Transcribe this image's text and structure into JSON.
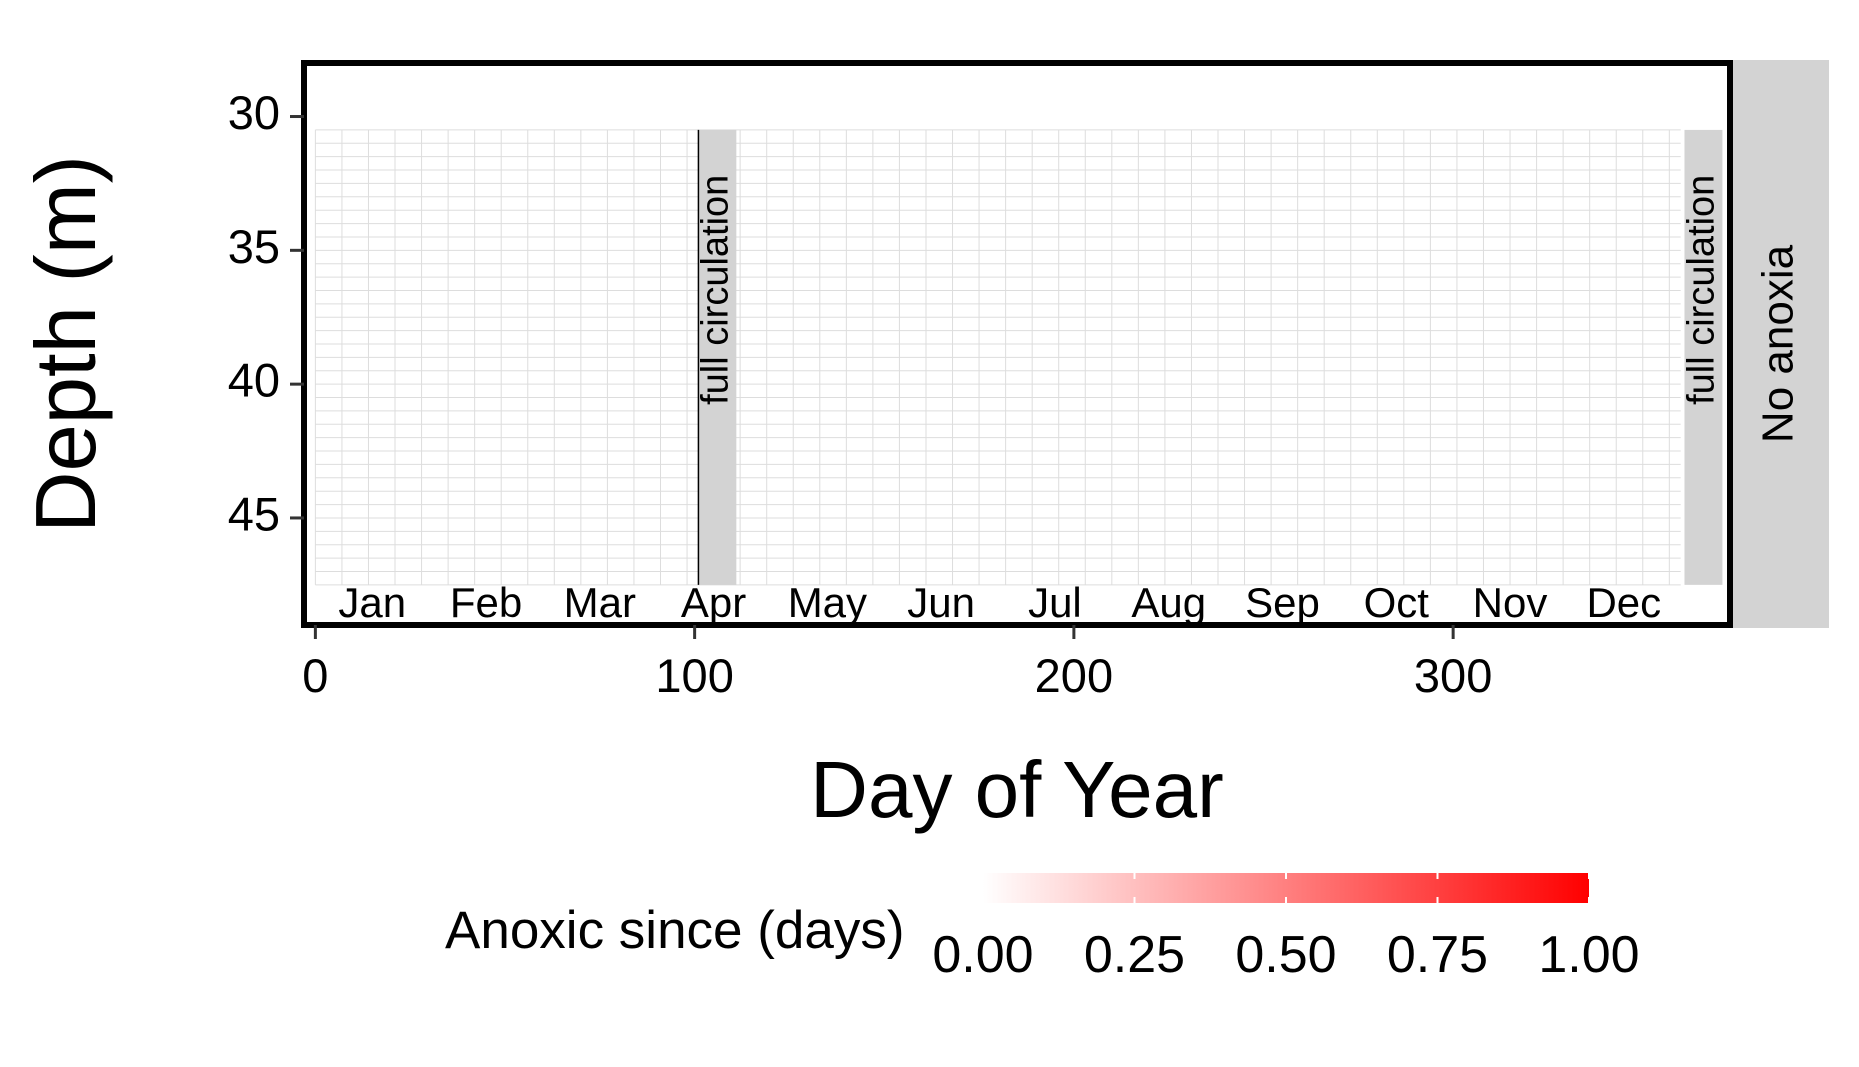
{
  "chart_data": {
    "type": "heatmap",
    "xlabel": "Day of Year",
    "ylabel": "Depth (m)",
    "xlim": [
      -3,
      373
    ],
    "ylim": [
      28,
      49
    ],
    "y_reversed": true,
    "x_ticks": [
      0,
      100,
      200,
      300
    ],
    "y_ticks": [
      30,
      35,
      40,
      45
    ],
    "facet_label": "No anoxia",
    "grid": "fine grid, days 0-360 by 7, depths 30.5-47.5",
    "month_labels": [
      "Jan",
      "Feb",
      "Mar",
      "Apr",
      "May",
      "Jun",
      "Jul",
      "Aug",
      "Sep",
      "Oct",
      "Nov",
      "Dec"
    ],
    "month_mid_days": [
      15,
      45,
      75,
      105,
      135,
      165,
      195,
      225,
      255,
      285,
      315,
      345
    ],
    "annotations": [
      {
        "label": "full circulation",
        "x_start": 101,
        "x_end": 111,
        "y_top": 30.5,
        "y_bottom": 47.5
      },
      {
        "label": "full circulation",
        "x_start": 361,
        "x_end": 371,
        "y_top": 30.5,
        "y_bottom": 47.5
      }
    ],
    "values": [],
    "legend": {
      "title": "Anoxic since (days)",
      "min": 0,
      "max": 1,
      "ticks": [
        "0.00",
        "0.25",
        "0.50",
        "0.75",
        "1.00"
      ],
      "color_low": "#ffffff",
      "color_high": "#ff0000",
      "position": "bottom"
    },
    "colors": {
      "panel_border": "#000000",
      "grid": "#dddddd",
      "strip": "#d3d3d3",
      "annotation_fill": "#d3d3d3"
    }
  }
}
